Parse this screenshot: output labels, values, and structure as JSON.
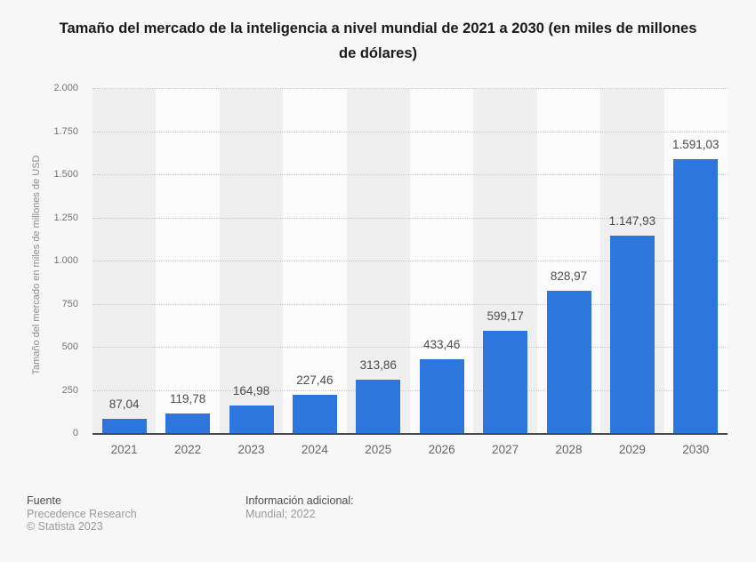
{
  "title": "Tamaño del mercado de la inteligencia a nivel mundial de 2021 a 2030 (en miles de millones de dólares)",
  "chart_data": {
    "type": "bar",
    "title": "Tamaño del mercado de la inteligencia a nivel mundial de 2021 a 2030 (en miles de millones de dólares)",
    "categories": [
      "2021",
      "2022",
      "2023",
      "2024",
      "2025",
      "2026",
      "2027",
      "2028",
      "2029",
      "2030"
    ],
    "values": [
      87.04,
      119.78,
      164.98,
      227.46,
      313.86,
      433.46,
      599.17,
      828.97,
      1147.93,
      1591.03
    ],
    "value_labels": [
      "87,04",
      "119,78",
      "164,98",
      "227,46",
      "313,86",
      "433,46",
      "599,17",
      "828,97",
      "1.147,93",
      "1.591,03"
    ],
    "xlabel": "",
    "ylabel": "Tamaño del mercado en miles de millones de USD",
    "ylim": [
      0,
      2000
    ],
    "y_ticks": [
      {
        "value": 0,
        "label": "0"
      },
      {
        "value": 250,
        "label": "250"
      },
      {
        "value": 500,
        "label": "500"
      },
      {
        "value": 750,
        "label": "750"
      },
      {
        "value": 1000,
        "label": "1.000"
      },
      {
        "value": 1250,
        "label": "1.250"
      },
      {
        "value": 1500,
        "label": "1.500"
      },
      {
        "value": 1750,
        "label": "1.750"
      },
      {
        "value": 2000,
        "label": "2.000"
      }
    ],
    "grid": "horizontal-dotted",
    "legend_position": "none"
  },
  "footer": {
    "source_heading": "Fuente",
    "source_lines": [
      "Precedence Research",
      "© Statista 2023"
    ],
    "info_heading": "Información adicional:",
    "info_value": "Mundial; 2022"
  },
  "colors": {
    "bar": "#2c76dd",
    "background": "#f7f7f7",
    "stripe_odd": "#efefef",
    "stripe_even": "#fbfbfb",
    "gridline": "#c9c9c9",
    "axis_line": "#4a4a4a",
    "title_text": "#1a1a1a",
    "value_label_text": "#4d4d4d",
    "tick_text": "#737373"
  }
}
